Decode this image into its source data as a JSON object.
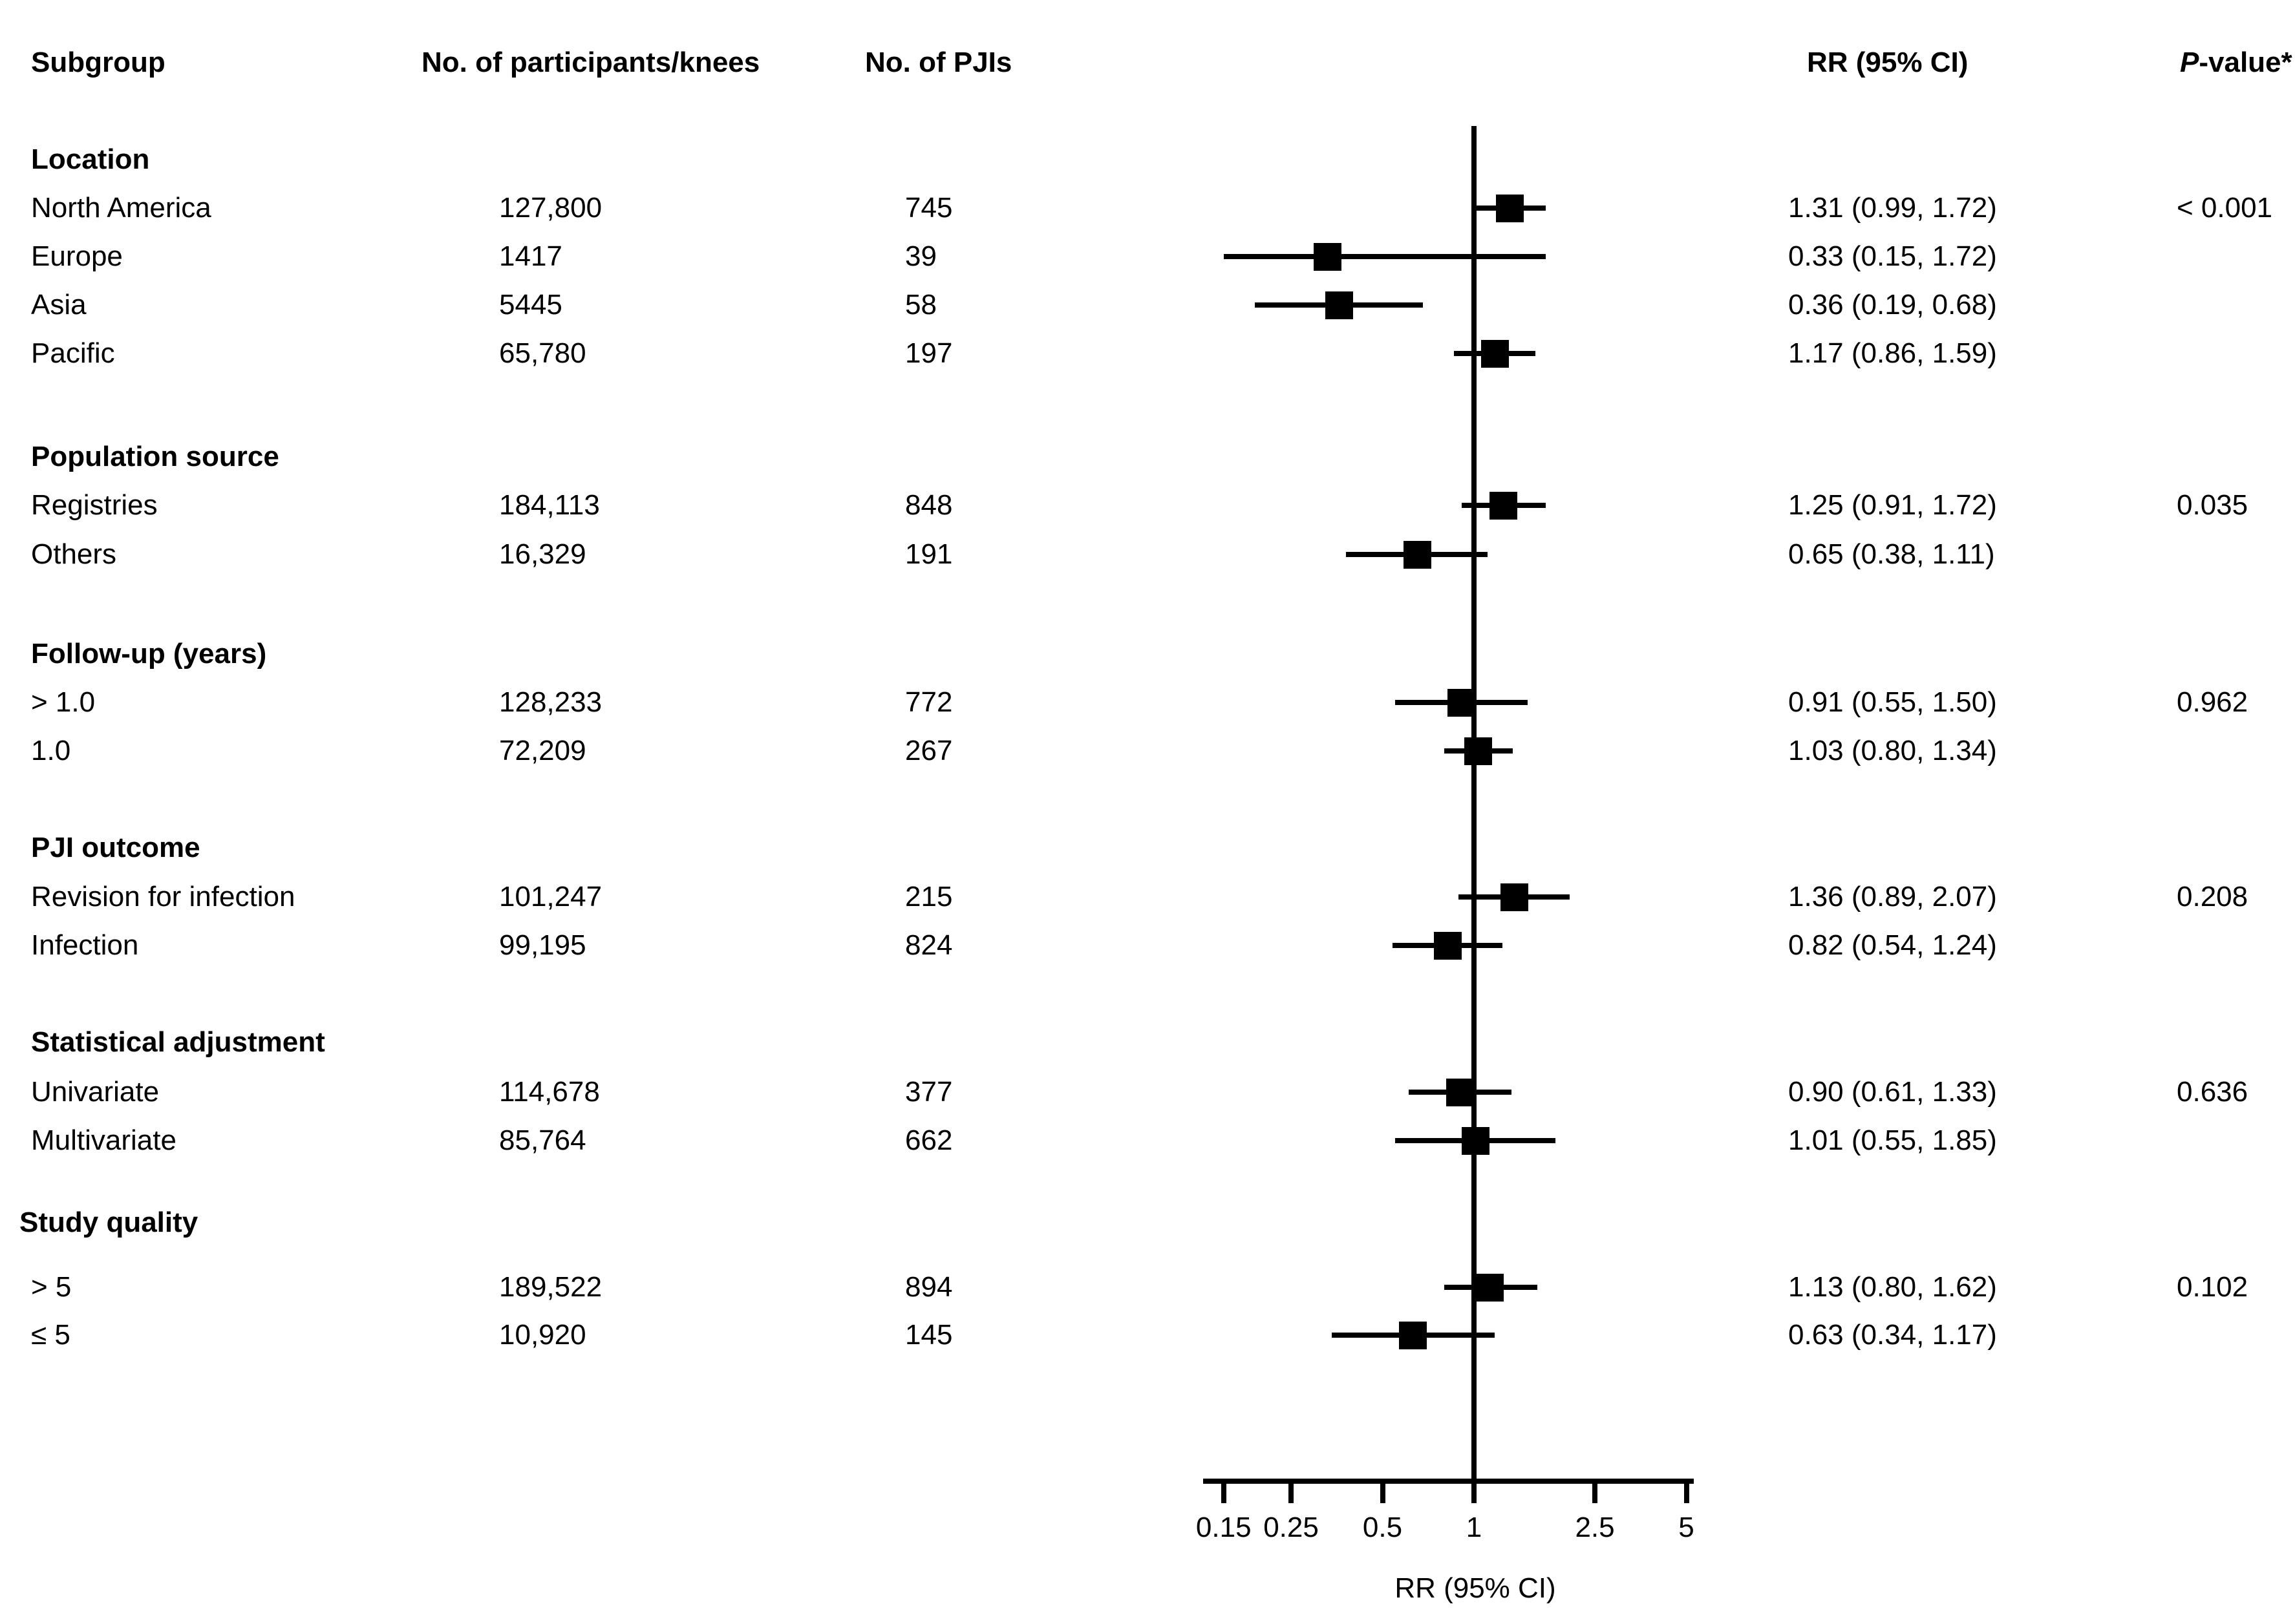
{
  "table": {
    "header": {
      "subgroup": "Subgroup",
      "participants": "No. of participants/knees",
      "pjis": "No. of PJIs",
      "rr": "RR (95% CI)",
      "pvalue_italic": "P",
      "pvalue_rest": "-value*"
    }
  },
  "axis": {
    "title": "RR (95% CI)",
    "tick_labels": [
      "0.15",
      "0.25",
      "0.5",
      "1",
      "2.5",
      "5"
    ]
  },
  "chart_data": {
    "type": "scatter",
    "variant": "forest_plot",
    "title": "Subgroup analysis forest plot",
    "xlabel": "RR (95% CI)",
    "xscale": "log",
    "xticks": [
      0.15,
      0.25,
      0.5,
      1,
      2.5,
      5
    ],
    "xlim": [
      0.128,
      5.3
    ],
    "reference_line": 1.0,
    "marker_color": "#000000",
    "sections": [
      {
        "title": "Location",
        "rows": [
          {
            "label": "North America",
            "participants": "127,800",
            "pjis": "745",
            "rr": 1.31,
            "ci": [
              0.99,
              1.72
            ],
            "rr_text": "1.31 (0.99, 1.72)",
            "pvalue": "< 0.001"
          },
          {
            "label": "Europe",
            "participants": "1417",
            "pjis": "39",
            "rr": 0.33,
            "ci": [
              0.15,
              1.72
            ],
            "rr_text": "0.33 (0.15, 1.72)",
            "pvalue": ""
          },
          {
            "label": "Asia",
            "participants": "5445",
            "pjis": "58",
            "rr": 0.36,
            "ci": [
              0.19,
              0.68
            ],
            "rr_text": "0.36 (0.19, 0.68)",
            "pvalue": ""
          },
          {
            "label": "Pacific",
            "participants": "65,780",
            "pjis": "197",
            "rr": 1.17,
            "ci": [
              0.86,
              1.59
            ],
            "rr_text": "1.17 (0.86, 1.59)",
            "pvalue": ""
          }
        ]
      },
      {
        "title": "Population source",
        "rows": [
          {
            "label": "Registries",
            "participants": "184,113",
            "pjis": "848",
            "rr": 1.25,
            "ci": [
              0.91,
              1.72
            ],
            "rr_text": "1.25 (0.91, 1.72)",
            "pvalue": "0.035"
          },
          {
            "label": "Others",
            "participants": "16,329",
            "pjis": "191",
            "rr": 0.65,
            "ci": [
              0.38,
              1.11
            ],
            "rr_text": "0.65 (0.38, 1.11)",
            "pvalue": ""
          }
        ]
      },
      {
        "title": "Follow-up (years)",
        "rows": [
          {
            "label": "> 1.0",
            "participants": "128,233",
            "pjis": "772",
            "rr": 0.91,
            "ci": [
              0.55,
              1.5
            ],
            "rr_text": "0.91 (0.55, 1.50)",
            "pvalue": "0.962"
          },
          {
            "label": "1.0",
            "participants": "72,209",
            "pjis": "267",
            "rr": 1.03,
            "ci": [
              0.8,
              1.34
            ],
            "rr_text": "1.03 (0.80, 1.34)",
            "pvalue": ""
          }
        ]
      },
      {
        "title": "PJI outcome",
        "rows": [
          {
            "label": "Revision for infection",
            "participants": "101,247",
            "pjis": "215",
            "rr": 1.36,
            "ci": [
              0.89,
              2.07
            ],
            "rr_text": "1.36 (0.89, 2.07)",
            "pvalue": "0.208"
          },
          {
            "label": "Infection",
            "participants": "99,195",
            "pjis": "824",
            "rr": 0.82,
            "ci": [
              0.54,
              1.24
            ],
            "rr_text": "0.82 (0.54, 1.24)",
            "pvalue": ""
          }
        ]
      },
      {
        "title": "Statistical adjustment",
        "rows": [
          {
            "label": "Univariate",
            "participants": "114,678",
            "pjis": "377",
            "rr": 0.9,
            "ci": [
              0.61,
              1.33
            ],
            "rr_text": "0.90 (0.61, 1.33)",
            "pvalue": "0.636"
          },
          {
            "label": "Multivariate",
            "participants": "85,764",
            "pjis": "662",
            "rr": 1.01,
            "ci": [
              0.55,
              1.85
            ],
            "rr_text": "1.01 (0.55, 1.85)",
            "pvalue": ""
          }
        ]
      },
      {
        "title": "Study quality",
        "rows": [
          {
            "label": "> 5",
            "participants": "189,522",
            "pjis": "894",
            "rr": 1.13,
            "ci": [
              0.8,
              1.62
            ],
            "rr_text": "1.13 (0.80, 1.62)",
            "pvalue": "0.102"
          },
          {
            "label": "≤ 5",
            "participants": "10,920",
            "pjis": "145",
            "rr": 0.63,
            "ci": [
              0.34,
              1.17
            ],
            "rr_text": "0.63 (0.34, 1.17)",
            "pvalue": ""
          }
        ]
      }
    ]
  }
}
